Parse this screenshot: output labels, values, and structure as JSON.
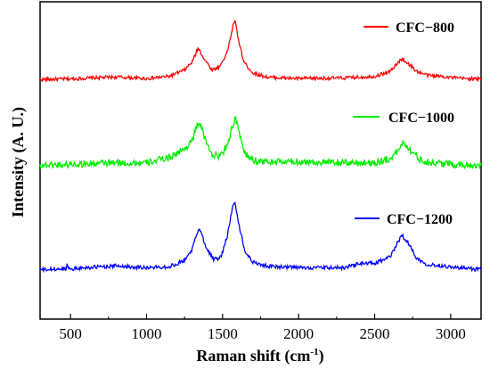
{
  "chart_data": {
    "type": "line",
    "title": "",
    "xlabel": "Raman shift (cm",
    "xlabel_sup": "-1",
    "xlabel_suffix": ")",
    "ylabel": "Intensity (A. U.)",
    "xlim": [
      300,
      3200
    ],
    "ylim": [
      0,
      100
    ],
    "xticks": [
      "500",
      "1000",
      "1500",
      "2000",
      "2500",
      "3000"
    ],
    "yticks_shown": false,
    "legend_placement": "inline-right",
    "series": [
      {
        "name": "CFC−800",
        "color": "#ff0000",
        "x": [
          300,
          500,
          800,
          1000,
          1150,
          1250,
          1300,
          1340,
          1380,
          1430,
          1480,
          1530,
          1560,
          1580,
          1600,
          1640,
          1700,
          1800,
          2000,
          2300,
          2500,
          2600,
          2650,
          2680,
          2720,
          2780,
          2850,
          2950,
          3050,
          3200
        ],
        "y": [
          75.5,
          75.7,
          76.3,
          75.8,
          76.5,
          78.5,
          81,
          85.5,
          82,
          78.5,
          79.5,
          84,
          90.5,
          94.5,
          89,
          81,
          77.5,
          76.2,
          75.8,
          76,
          76.5,
          78,
          80.5,
          82.2,
          80.5,
          78,
          76.8,
          76.5,
          75.9,
          75.6
        ]
      },
      {
        "name": "CFC−1000",
        "color": "#00ee00",
        "x": [
          300,
          500,
          800,
          1000,
          1150,
          1250,
          1300,
          1345,
          1390,
          1440,
          1490,
          1530,
          1560,
          1585,
          1610,
          1650,
          1700,
          1800,
          2000,
          2300,
          2500,
          2600,
          2660,
          2690,
          2730,
          2790,
          2850,
          2950,
          3050,
          3200
        ],
        "y": [
          48.5,
          48.8,
          49.2,
          49.2,
          51,
          53.5,
          56.5,
          62.5,
          56,
          51.5,
          51.5,
          55,
          60,
          63.5,
          58,
          52,
          50,
          49.5,
          49.6,
          49.2,
          49.3,
          50.5,
          53.5,
          56,
          53.5,
          50.5,
          49.5,
          49,
          48.7,
          48.5
        ]
      },
      {
        "name": "CFC−1200",
        "color": "#0000ff",
        "x": [
          300,
          470,
          480,
          490,
          600,
          800,
          1000,
          1150,
          1250,
          1300,
          1345,
          1390,
          1440,
          1490,
          1530,
          1560,
          1580,
          1605,
          1650,
          1700,
          1800,
          2000,
          2300,
          2400,
          2500,
          2600,
          2650,
          2680,
          2720,
          2780,
          2850,
          2950,
          3050,
          3200
        ],
        "y": [
          15.5,
          15.8,
          17.5,
          15.8,
          16.2,
          16.8,
          16.2,
          16.5,
          18.5,
          22,
          29,
          23,
          18.8,
          19.5,
          26,
          34,
          37.5,
          30,
          21,
          18,
          16.6,
          16.2,
          16.2,
          17.5,
          17.6,
          19.5,
          24,
          26.5,
          24,
          19,
          17.2,
          16.8,
          16.2,
          15.6
        ]
      }
    ],
    "legend": [
      {
        "label": "CFC−800",
        "color": "#ff0000"
      },
      {
        "label": "CFC−1000",
        "color": "#00ee00"
      },
      {
        "label": "CFC−1200",
        "color": "#0000ff"
      }
    ]
  }
}
